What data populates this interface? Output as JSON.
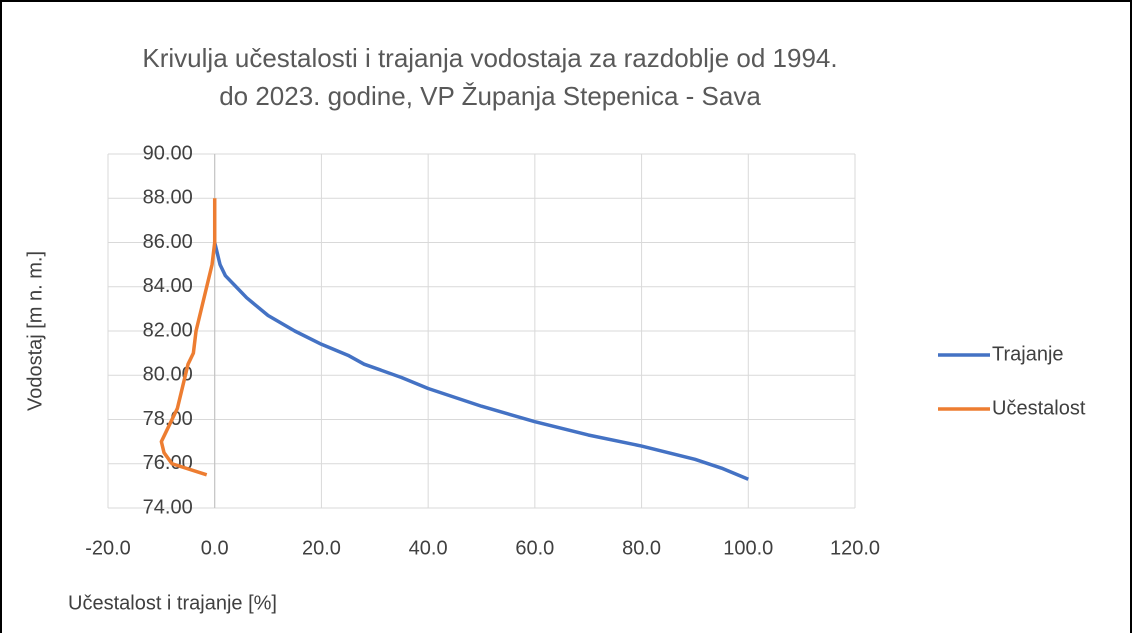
{
  "chart_data": {
    "type": "line",
    "title": [
      "Krivulja učestalosti i trajanja vodostaja za razdoblje od 1994.",
      "do 2023. godine, VP Županja Stepenica - Sava"
    ],
    "x_label": "Učestalost i trajanje [%]",
    "y_label": "Vodostaj [m n. m.]",
    "xlim": [
      -20,
      120
    ],
    "xticks": [
      {
        "value": -20,
        "label": "-20.0"
      },
      {
        "value": 0,
        "label": "0.0"
      },
      {
        "value": 20,
        "label": "20.0"
      },
      {
        "value": 40,
        "label": "40.0"
      },
      {
        "value": 60,
        "label": "60.0"
      },
      {
        "value": 80,
        "label": "80.0"
      },
      {
        "value": 100,
        "label": "100.0"
      },
      {
        "value": 120,
        "label": "120.0"
      }
    ],
    "ylim": [
      74,
      90
    ],
    "yticks": [
      {
        "value": 74,
        "label": "74.00"
      },
      {
        "value": 76,
        "label": "76.00"
      },
      {
        "value": 78,
        "label": "78.00"
      },
      {
        "value": 80,
        "label": "80.00"
      },
      {
        "value": 82,
        "label": "82.00"
      },
      {
        "value": 84,
        "label": "84.00"
      },
      {
        "value": 86,
        "label": "86.00"
      },
      {
        "value": 88,
        "label": "88.00"
      },
      {
        "value": 90,
        "label": "90.00"
      }
    ],
    "grid": true,
    "legend": "right",
    "series": [
      {
        "name": "Trajanje",
        "color": "#4472c4",
        "x": [
          0,
          0.5,
          1,
          2,
          4,
          6,
          10,
          15,
          20,
          25,
          28,
          35,
          40,
          50,
          60,
          70,
          80,
          90,
          95,
          100
        ],
        "values": [
          86.0,
          85.5,
          85.0,
          84.5,
          84.0,
          83.5,
          82.7,
          82.0,
          81.4,
          80.9,
          80.5,
          79.9,
          79.4,
          78.6,
          77.9,
          77.3,
          76.8,
          76.2,
          75.8,
          75.3
        ]
      },
      {
        "name": "Učestalost",
        "color": "#ed7d31",
        "x": [
          0,
          0,
          -0.5,
          -1.5,
          -2.5,
          -3,
          -3.5,
          -4,
          -5,
          -6,
          -7,
          -8,
          -9,
          -10,
          -9.5,
          -8,
          -1.5
        ],
        "values": [
          88,
          86,
          85,
          84,
          83,
          82.5,
          82,
          81,
          80.5,
          79.5,
          78.5,
          78,
          77.5,
          77,
          76.5,
          76,
          75.5
        ]
      }
    ]
  }
}
